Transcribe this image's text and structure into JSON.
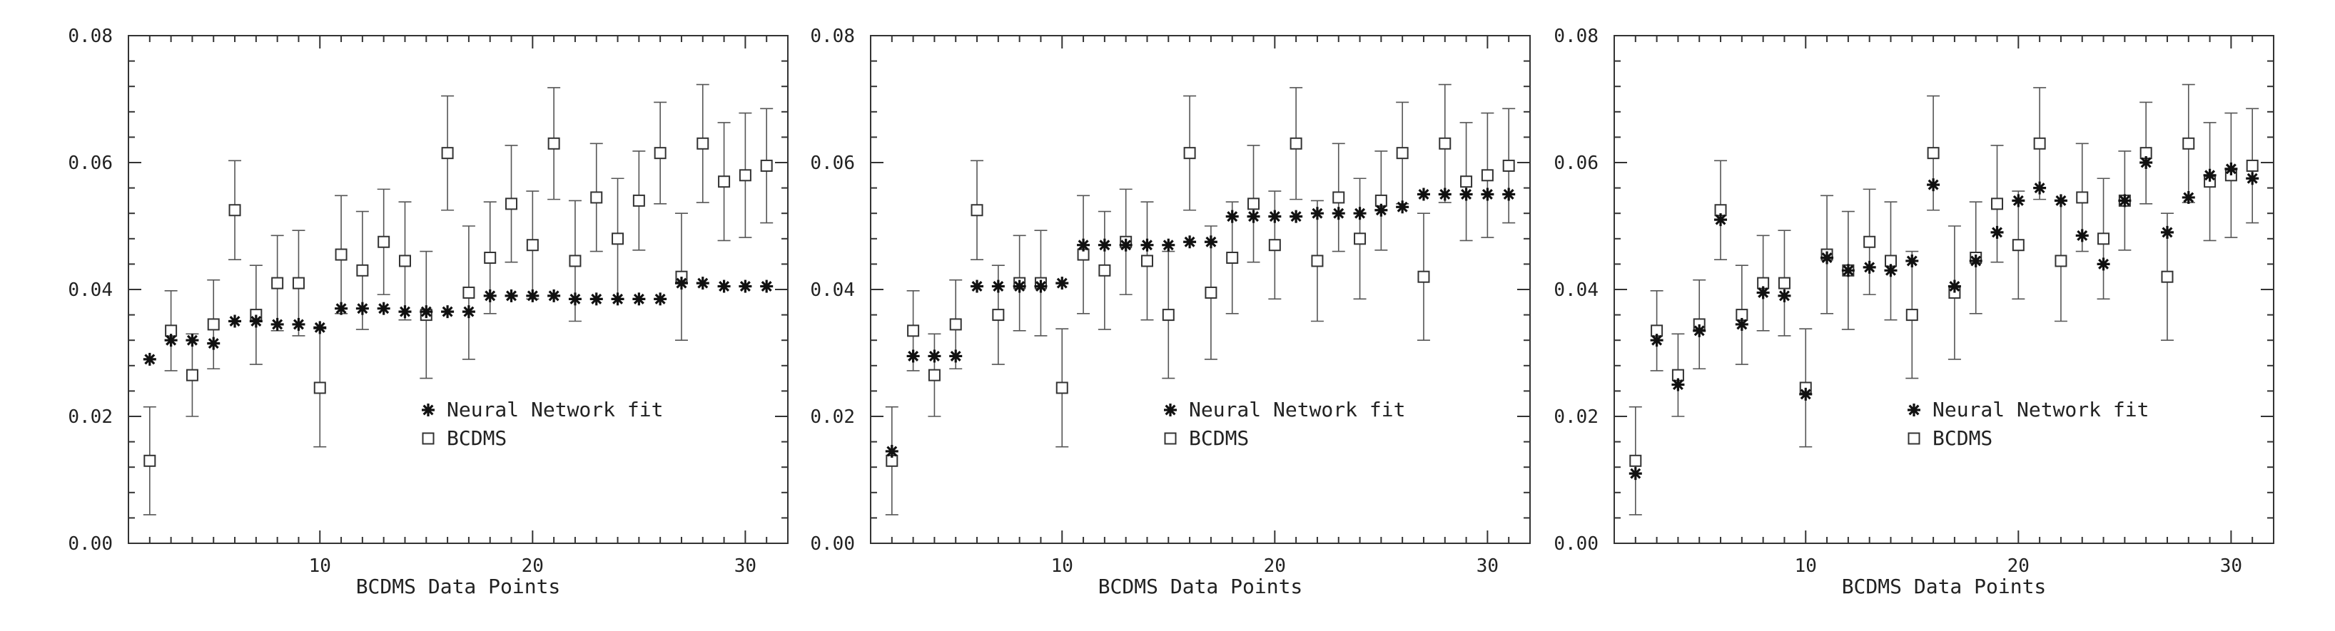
{
  "chart_data": [
    {
      "type": "scatter",
      "xlabel": "BCDMS Data Points",
      "ylabel": "",
      "xlim": [
        1,
        32
      ],
      "ylim": [
        0,
        0.08
      ],
      "xticks": [
        10,
        20,
        30
      ],
      "yticks": [
        "0.00",
        "0.02",
        "0.04",
        "0.06",
        "0.08"
      ],
      "legend_placement": "center",
      "grid": false,
      "legend": [
        "Neural Network fit",
        "BCDMS"
      ],
      "series": [
        {
          "name": "Neural Network fit",
          "marker": "asterisk",
          "x": [
            2,
            3,
            4,
            5,
            6,
            7,
            8,
            9,
            10,
            11,
            12,
            13,
            14,
            15,
            16,
            17,
            18,
            19,
            20,
            21,
            22,
            23,
            24,
            25,
            26,
            27,
            28,
            29,
            30,
            31
          ],
          "y": [
            0.029,
            0.032,
            0.032,
            0.0315,
            0.035,
            0.035,
            0.0345,
            0.0345,
            0.034,
            0.037,
            0.037,
            0.037,
            0.0365,
            0.0365,
            0.0365,
            0.0365,
            0.039,
            0.039,
            0.039,
            0.039,
            0.0385,
            0.0385,
            0.0385,
            0.0385,
            0.0385,
            0.041,
            0.041,
            0.0405,
            0.0405,
            0.0405
          ]
        },
        {
          "name": "BCDMS",
          "marker": "open-square",
          "x": [
            2,
            3,
            4,
            5,
            6,
            7,
            8,
            9,
            10,
            11,
            12,
            13,
            14,
            15,
            16,
            17,
            18,
            19,
            20,
            21,
            22,
            23,
            24,
            25,
            26,
            27,
            28,
            29,
            30,
            31
          ],
          "y": [
            0.013,
            0.0335,
            0.0265,
            0.0345,
            0.0525,
            0.036,
            0.041,
            0.041,
            0.0245,
            0.0455,
            0.043,
            0.0475,
            0.0445,
            0.036,
            0.0615,
            0.0395,
            0.045,
            0.0535,
            0.047,
            0.063,
            0.0445,
            0.0545,
            0.048,
            0.054,
            0.0615,
            0.042,
            0.063,
            0.057,
            0.058,
            0.0595
          ],
          "err": [
            0.0085,
            0.0063,
            0.0065,
            0.007,
            0.0078,
            0.0078,
            0.0075,
            0.0083,
            0.0093,
            0.0093,
            0.0093,
            0.0083,
            0.0093,
            0.01,
            0.009,
            0.0105,
            0.0088,
            0.0092,
            0.0085,
            0.0088,
            0.0095,
            0.0085,
            0.0095,
            0.0078,
            0.008,
            0.01,
            0.0093,
            0.0093,
            0.0098,
            0.009
          ]
        }
      ]
    },
    {
      "type": "scatter",
      "xlabel": "BCDMS Data Points",
      "ylabel": "",
      "xlim": [
        1,
        32
      ],
      "ylim": [
        0,
        0.08
      ],
      "xticks": [
        10,
        20,
        30
      ],
      "yticks": [
        "0.00",
        "0.02",
        "0.04",
        "0.06",
        "0.08"
      ],
      "legend_placement": "center",
      "grid": false,
      "legend": [
        "Neural Network fit",
        "BCDMS"
      ],
      "series": [
        {
          "name": "Neural Network fit",
          "marker": "asterisk",
          "x": [
            2,
            3,
            4,
            5,
            6,
            7,
            8,
            9,
            10,
            11,
            12,
            13,
            14,
            15,
            16,
            17,
            18,
            19,
            20,
            21,
            22,
            23,
            24,
            25,
            26,
            27,
            28,
            29,
            30,
            31
          ],
          "y": [
            0.0145,
            0.0295,
            0.0295,
            0.0295,
            0.0405,
            0.0405,
            0.0405,
            0.0405,
            0.041,
            0.047,
            0.047,
            0.047,
            0.047,
            0.047,
            0.0475,
            0.0475,
            0.0515,
            0.0515,
            0.0515,
            0.0515,
            0.052,
            0.052,
            0.052,
            0.0525,
            0.053,
            0.055,
            0.055,
            0.055,
            0.055,
            0.055
          ]
        },
        {
          "name": "BCDMS",
          "marker": "open-square",
          "x": [
            2,
            3,
            4,
            5,
            6,
            7,
            8,
            9,
            10,
            11,
            12,
            13,
            14,
            15,
            16,
            17,
            18,
            19,
            20,
            21,
            22,
            23,
            24,
            25,
            26,
            27,
            28,
            29,
            30,
            31
          ],
          "y": [
            0.013,
            0.0335,
            0.0265,
            0.0345,
            0.0525,
            0.036,
            0.041,
            0.041,
            0.0245,
            0.0455,
            0.043,
            0.0475,
            0.0445,
            0.036,
            0.0615,
            0.0395,
            0.045,
            0.0535,
            0.047,
            0.063,
            0.0445,
            0.0545,
            0.048,
            0.054,
            0.0615,
            0.042,
            0.063,
            0.057,
            0.058,
            0.0595
          ],
          "err": [
            0.0085,
            0.0063,
            0.0065,
            0.007,
            0.0078,
            0.0078,
            0.0075,
            0.0083,
            0.0093,
            0.0093,
            0.0093,
            0.0083,
            0.0093,
            0.01,
            0.009,
            0.0105,
            0.0088,
            0.0092,
            0.0085,
            0.0088,
            0.0095,
            0.0085,
            0.0095,
            0.0078,
            0.008,
            0.01,
            0.0093,
            0.0093,
            0.0098,
            0.009
          ]
        }
      ]
    },
    {
      "type": "scatter",
      "xlabel": "BCDMS Data Points",
      "ylabel": "",
      "xlim": [
        1,
        32
      ],
      "ylim": [
        0,
        0.08
      ],
      "xticks": [
        10,
        20,
        30
      ],
      "yticks": [
        "0.00",
        "0.02",
        "0.04",
        "0.06",
        "0.08"
      ],
      "legend_placement": "center",
      "grid": false,
      "legend": [
        "Neural Network fit",
        "BCDMS"
      ],
      "series": [
        {
          "name": "Neural Network fit",
          "marker": "asterisk",
          "x": [
            2,
            3,
            4,
            5,
            6,
            7,
            8,
            9,
            10,
            11,
            12,
            13,
            14,
            15,
            16,
            17,
            18,
            19,
            20,
            21,
            22,
            23,
            24,
            25,
            26,
            27,
            28,
            29,
            30,
            31
          ],
          "y": [
            0.011,
            0.032,
            0.025,
            0.0335,
            0.051,
            0.0345,
            0.0395,
            0.039,
            0.0235,
            0.045,
            0.043,
            0.0435,
            0.043,
            0.0445,
            0.0565,
            0.0405,
            0.0445,
            0.049,
            0.054,
            0.056,
            0.054,
            0.0485,
            0.044,
            0.054,
            0.06,
            0.049,
            0.0545,
            0.058,
            0.059,
            0.0575
          ]
        },
        {
          "name": "BCDMS",
          "marker": "open-square",
          "x": [
            2,
            3,
            4,
            5,
            6,
            7,
            8,
            9,
            10,
            11,
            12,
            13,
            14,
            15,
            16,
            17,
            18,
            19,
            20,
            21,
            22,
            23,
            24,
            25,
            26,
            27,
            28,
            29,
            30,
            31
          ],
          "y": [
            0.013,
            0.0335,
            0.0265,
            0.0345,
            0.0525,
            0.036,
            0.041,
            0.041,
            0.0245,
            0.0455,
            0.043,
            0.0475,
            0.0445,
            0.036,
            0.0615,
            0.0395,
            0.045,
            0.0535,
            0.047,
            0.063,
            0.0445,
            0.0545,
            0.048,
            0.054,
            0.0615,
            0.042,
            0.063,
            0.057,
            0.058,
            0.0595
          ],
          "err": [
            0.0085,
            0.0063,
            0.0065,
            0.007,
            0.0078,
            0.0078,
            0.0075,
            0.0083,
            0.0093,
            0.0093,
            0.0093,
            0.0083,
            0.0093,
            0.01,
            0.009,
            0.0105,
            0.0088,
            0.0092,
            0.0085,
            0.0088,
            0.0095,
            0.0085,
            0.0095,
            0.0078,
            0.008,
            0.01,
            0.0093,
            0.0093,
            0.0098,
            0.009
          ]
        }
      ]
    }
  ]
}
